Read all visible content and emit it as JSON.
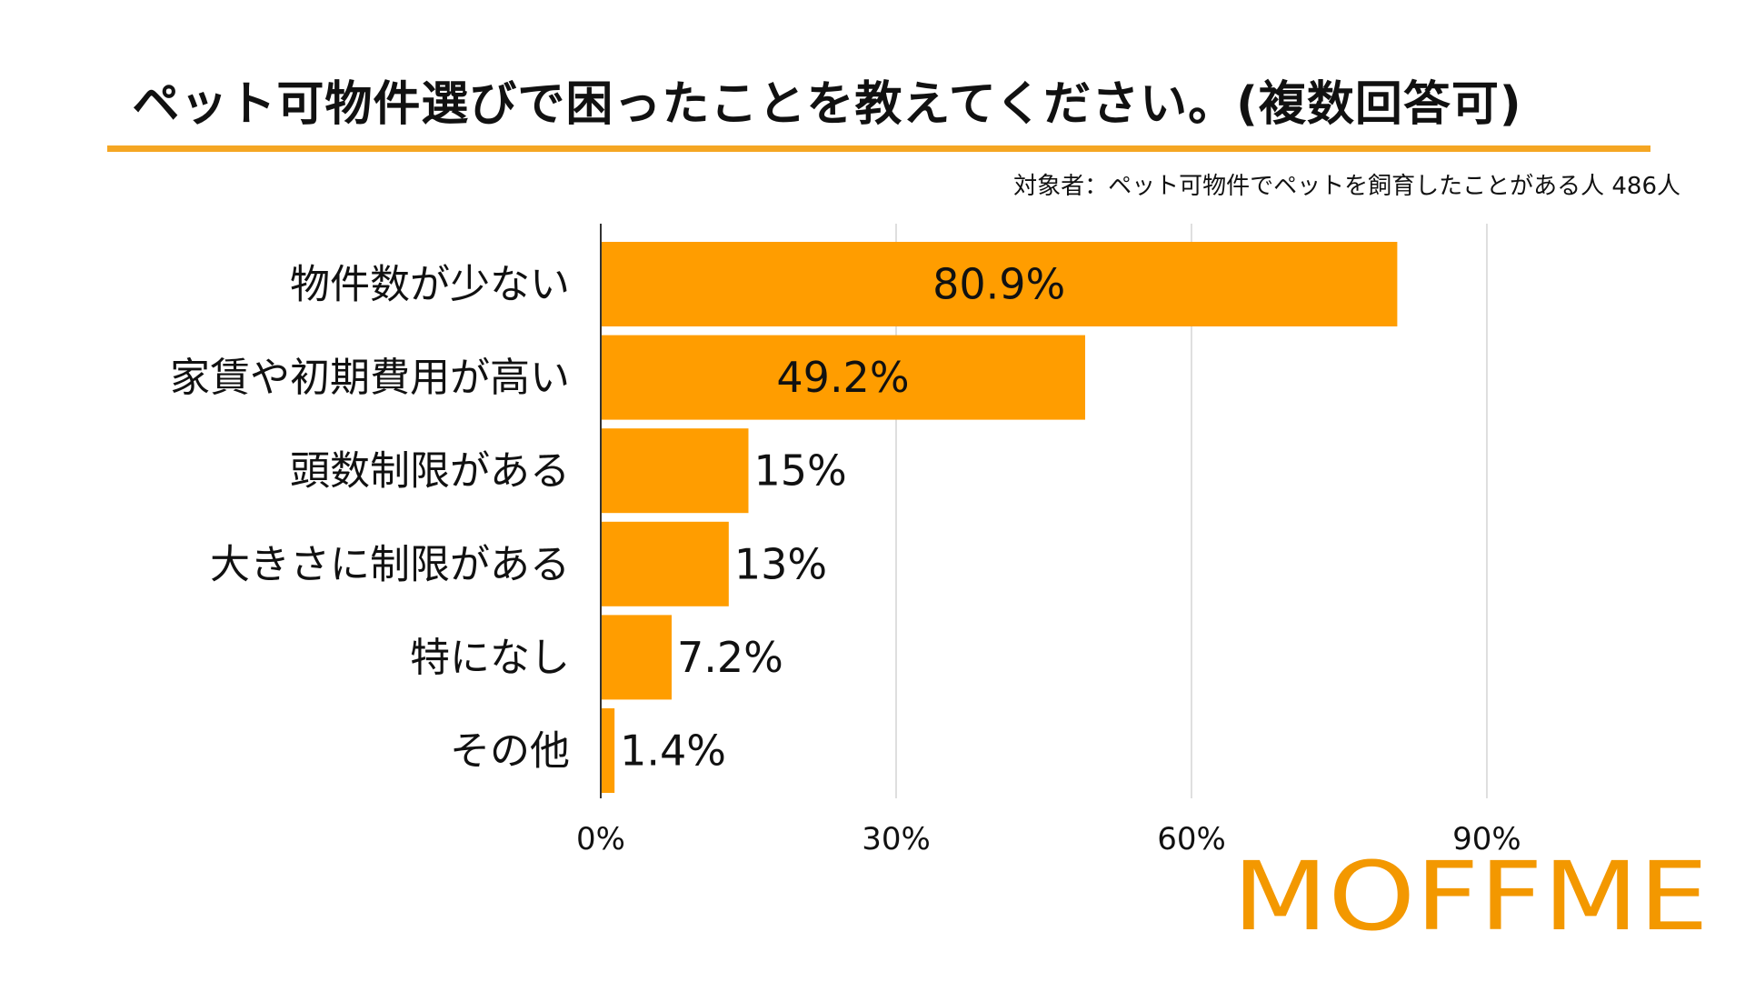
{
  "colors": {
    "bar": "#FF9D00",
    "accent_rule": "#F5A623",
    "grid": "#d4d4d4",
    "axis": "#333333",
    "text": "#111111",
    "logo": "#F39800"
  },
  "header": {
    "title": "ペット可物件選びで困ったことを教えてください。(複数回答可)",
    "subtitle": "対象者：ペット可物件でペットを飼育したことがある人 486人"
  },
  "brand": {
    "logo_text": "MOFFME"
  },
  "chart_data": {
    "type": "bar",
    "orientation": "horizontal",
    "title": "ペット可物件選びで困ったことを教えてください。(複数回答可)",
    "subtitle": "対象者：ペット可物件でペットを飼育したことがある人 486人",
    "categories": [
      "物件数が少ない",
      "家賃や初期費用が高い",
      "頭数制限がある",
      "大きさに制限がある",
      "特になし",
      "その他"
    ],
    "values": [
      80.9,
      49.2,
      15,
      13,
      7.2,
      1.4
    ],
    "data_labels": [
      "80.9%",
      "49.2%",
      "15%",
      "13%",
      "7.2%",
      "1.4%"
    ],
    "x_ticks": [
      0,
      30,
      60,
      90
    ],
    "x_tick_labels": [
      "0%",
      "30%",
      "60%",
      "90%"
    ],
    "xlim": [
      0,
      100
    ],
    "xlabel": "",
    "ylabel": "",
    "grid": true,
    "legend": "none"
  }
}
